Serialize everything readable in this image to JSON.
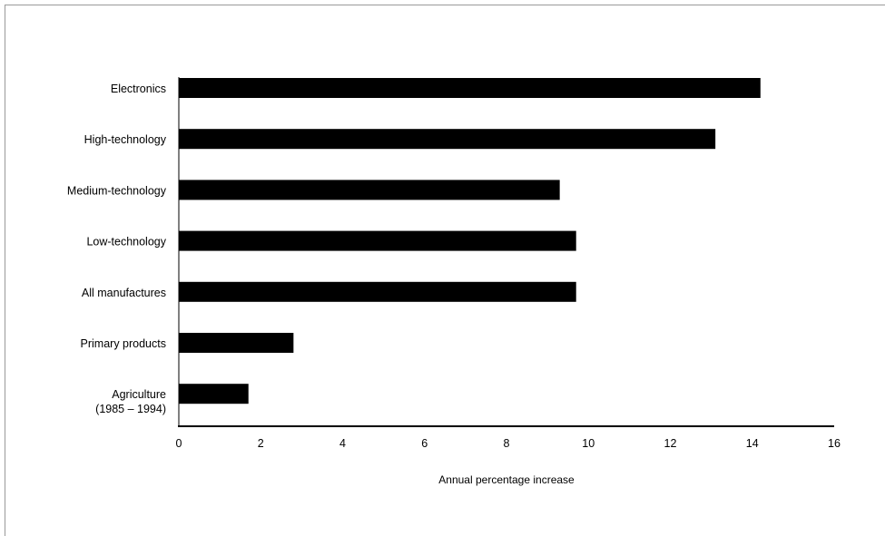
{
  "chart_data": {
    "type": "bar",
    "orientation": "horizontal",
    "title": "",
    "xlabel": "Annual percentage increase",
    "ylabel": "",
    "xlim": [
      0,
      16
    ],
    "xticks": [
      "0",
      "2",
      "4",
      "6",
      "8",
      "10",
      "12",
      "14",
      "16"
    ],
    "grid": false,
    "bar_color": "#000000",
    "categories": [
      [
        "Electronics"
      ],
      [
        "High-technology"
      ],
      [
        "Medium-technology"
      ],
      [
        "Low-technology"
      ],
      [
        "All manufactures"
      ],
      [
        "Primary products"
      ],
      [
        "Agriculture",
        "(1985 – 1994)"
      ]
    ],
    "values": [
      14.2,
      13.1,
      9.3,
      9.7,
      9.7,
      2.8,
      1.7
    ]
  }
}
